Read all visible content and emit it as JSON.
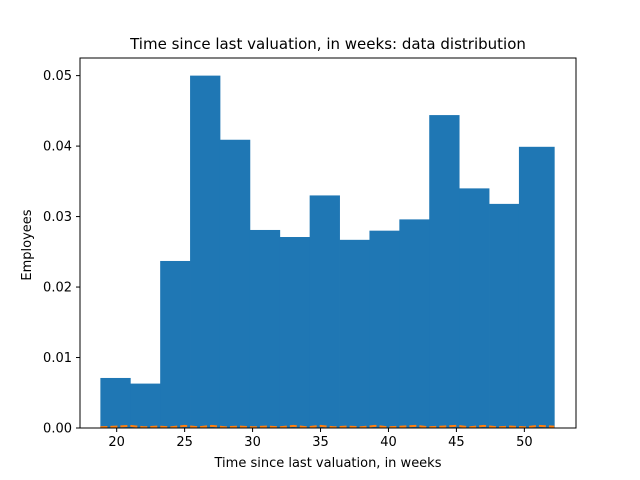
{
  "chart_data": {
    "type": "bar",
    "title": "Time since last valuation, in weeks: data distribution",
    "xlabel": "Time since last valuation, in weeks",
    "ylabel": "Employees",
    "xlim": [
      17.3,
      53.8
    ],
    "ylim": [
      0,
      0.0525
    ],
    "xticks": [
      20,
      25,
      30,
      35,
      40,
      45,
      50
    ],
    "xtick_labels": [
      "20",
      "25",
      "30",
      "35",
      "40",
      "45",
      "50"
    ],
    "yticks": [
      0,
      0.01,
      0.02,
      0.03,
      0.04,
      0.05
    ],
    "ytick_labels": [
      "0.00",
      "0.01",
      "0.02",
      "0.03",
      "0.04",
      "0.05"
    ],
    "bins": [
      {
        "start": 18.8,
        "end": 21.0,
        "value": 0.0071
      },
      {
        "start": 21.0,
        "end": 23.2,
        "value": 0.0063
      },
      {
        "start": 23.2,
        "end": 25.4,
        "value": 0.0237
      },
      {
        "start": 25.4,
        "end": 27.6,
        "value": 0.05
      },
      {
        "start": 27.6,
        "end": 29.8,
        "value": 0.0409
      },
      {
        "start": 29.8,
        "end": 32.0,
        "value": 0.0281
      },
      {
        "start": 32.0,
        "end": 34.2,
        "value": 0.0271
      },
      {
        "start": 34.2,
        "end": 36.4,
        "value": 0.033
      },
      {
        "start": 36.4,
        "end": 38.6,
        "value": 0.0267
      },
      {
        "start": 38.6,
        "end": 40.8,
        "value": 0.028
      },
      {
        "start": 40.8,
        "end": 43.0,
        "value": 0.0296
      },
      {
        "start": 43.0,
        "end": 45.2,
        "value": 0.0444
      },
      {
        "start": 45.2,
        "end": 47.4,
        "value": 0.034
      },
      {
        "start": 47.4,
        "end": 49.6,
        "value": 0.0318
      },
      {
        "start": 49.6,
        "end": 52.2,
        "value": 0.0399
      }
    ],
    "density_line": {
      "x": [
        18.8,
        20.0,
        21.0,
        22.0,
        23.0,
        24.0,
        25.0,
        26.0,
        27.0,
        28.0,
        29.0,
        30.0,
        31.0,
        32.0,
        33.0,
        34.0,
        35.0,
        36.0,
        37.0,
        38.0,
        39.0,
        40.0,
        41.0,
        42.0,
        43.0,
        44.0,
        45.0,
        46.0,
        47.0,
        48.0,
        49.0,
        50.0,
        51.0,
        52.2
      ],
      "y": [
        0.0001,
        0.0002,
        0.0003,
        0.0001,
        0.0002,
        0.0001,
        0.0003,
        0.0001,
        0.0003,
        0.0001,
        0.0002,
        0.0001,
        0.0002,
        0.0001,
        0.0003,
        0.0001,
        0.0003,
        0.0001,
        0.0002,
        0.0001,
        0.0003,
        0.0001,
        0.0002,
        0.0003,
        0.0001,
        0.0002,
        0.0003,
        0.0001,
        0.0003,
        0.0001,
        0.0002,
        0.0001,
        0.0003,
        0.0002
      ]
    },
    "colors": {
      "bars": "#1f77b4",
      "line": "#ff7f0e",
      "axes": "#000000"
    },
    "grid": false
  }
}
